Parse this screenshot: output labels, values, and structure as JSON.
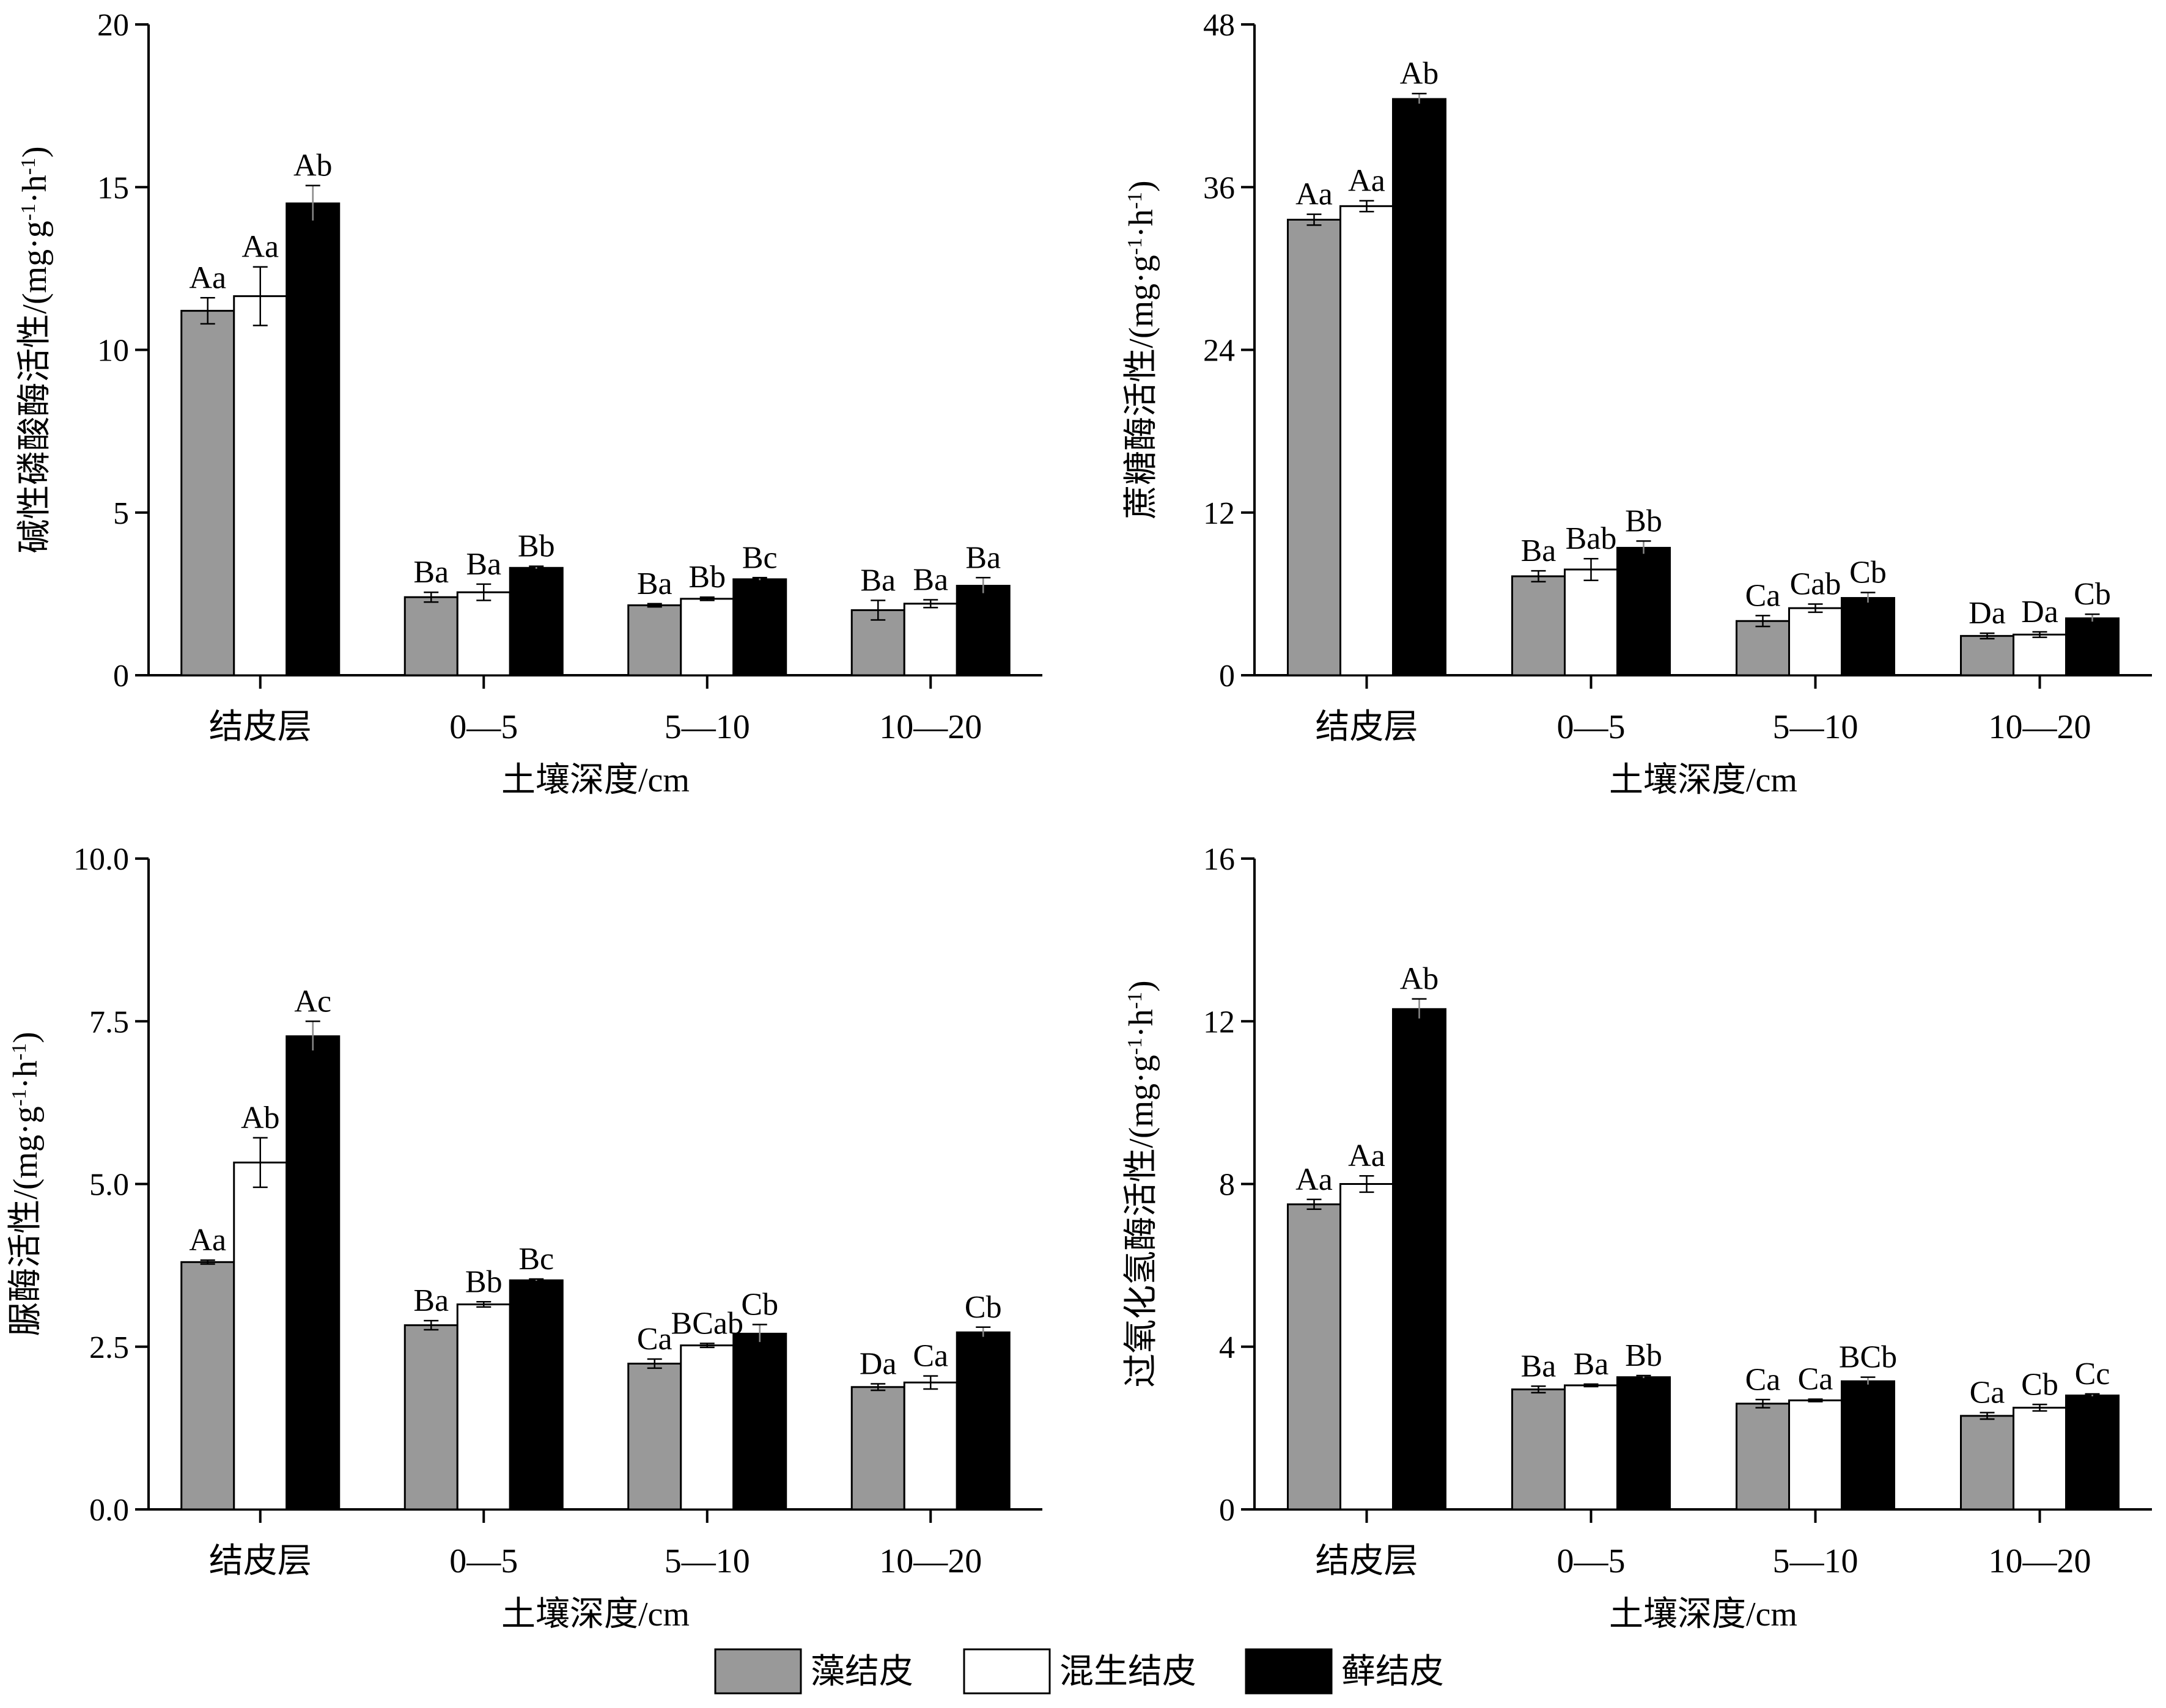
{
  "colors": {
    "algae": "#999999",
    "mixed": "#ffffff",
    "moss": "#000000",
    "stroke": "#000000"
  },
  "legend": [
    {
      "name": "藻结皮",
      "color": "#999999"
    },
    {
      "name": "混生结皮",
      "color": "#ffffff"
    },
    {
      "name": "藓结皮",
      "color": "#000000"
    }
  ],
  "chart_data": [
    {
      "type": "bar",
      "panel": "top-left",
      "categories": [
        "结皮层",
        "0—5",
        "5—10",
        "10—20"
      ],
      "xlabel": "土壤深度/cm",
      "ylabel_main": "碱性磷酸酶活性/(mg·g",
      "ylabel_mid": "·h",
      "ylabel_sup1": "-1",
      "ylabel_sup2": "-1",
      "ylabel_close": ")",
      "ylim": [
        0,
        20
      ],
      "yticks": [
        "0",
        "5",
        "10",
        "15",
        "20"
      ],
      "series": [
        {
          "name": "藻结皮",
          "values": [
            11.2,
            2.4,
            2.15,
            2.0
          ],
          "errors": [
            0.4,
            0.15,
            0.05,
            0.3
          ],
          "labels": [
            "Aa",
            "Ba",
            "Ba",
            "Ba"
          ]
        },
        {
          "name": "混生结皮",
          "values": [
            11.65,
            2.55,
            2.35,
            2.2
          ],
          "errors": [
            0.9,
            0.25,
            0.05,
            0.12
          ],
          "labels": [
            "Aa",
            "Ba",
            "Bb",
            "Ba"
          ]
        },
        {
          "name": "藓结皮",
          "values": [
            14.5,
            3.3,
            2.95,
            2.75
          ],
          "errors": [
            0.55,
            0.05,
            0.05,
            0.25
          ],
          "labels": [
            "Ab",
            "Bb",
            "Bc",
            "Ba"
          ]
        }
      ]
    },
    {
      "type": "bar",
      "panel": "top-right",
      "categories": [
        "结皮层",
        "0—5",
        "5—10",
        "10—20"
      ],
      "xlabel": "土壤深度/cm",
      "ylabel_main": "蔗糖酶活性/(mg·g",
      "ylabel_mid": "·h",
      "ylabel_sup1": "-1",
      "ylabel_sup2": "-1",
      "ylabel_close": ")",
      "ylim": [
        0,
        48
      ],
      "yticks": [
        "0",
        "12",
        "24",
        "36",
        "48"
      ],
      "series": [
        {
          "name": "藻结皮",
          "values": [
            33.6,
            7.3,
            4.0,
            2.9
          ],
          "errors": [
            0.4,
            0.4,
            0.4,
            0.2
          ],
          "labels": [
            "Aa",
            "Ba",
            "Ca",
            "Da"
          ]
        },
        {
          "name": "混生结皮",
          "values": [
            34.6,
            7.8,
            4.95,
            3.0
          ],
          "errors": [
            0.4,
            0.8,
            0.3,
            0.2
          ],
          "labels": [
            "Aa",
            "Bab",
            "Cab",
            "Da"
          ]
        },
        {
          "name": "藓结皮",
          "values": [
            42.5,
            9.4,
            5.7,
            4.2
          ],
          "errors": [
            0.4,
            0.5,
            0.4,
            0.3
          ],
          "labels": [
            "Ab",
            "Bb",
            "Cb",
            "Cb"
          ]
        }
      ]
    },
    {
      "type": "bar",
      "panel": "bottom-left",
      "categories": [
        "结皮层",
        "0—5",
        "5—10",
        "10—20"
      ],
      "xlabel": "土壤深度/cm",
      "ylabel_main": "脲酶活性/(mg·g",
      "ylabel_mid": "·h",
      "ylabel_sup1": "-1",
      "ylabel_sup2": "-1",
      "ylabel_close": ")",
      "ylim": [
        0,
        10
      ],
      "yticks": [
        "0.0",
        "2.5",
        "5.0",
        "7.5",
        "10.0"
      ],
      "series": [
        {
          "name": "藻结皮",
          "values": [
            3.8,
            2.83,
            2.24,
            1.88
          ],
          "errors": [
            0.03,
            0.07,
            0.07,
            0.05
          ],
          "labels": [
            "Aa",
            "Ba",
            "Ca",
            "Da"
          ]
        },
        {
          "name": "混生结皮",
          "values": [
            5.33,
            3.15,
            2.52,
            1.95
          ],
          "errors": [
            0.38,
            0.04,
            0.03,
            0.1
          ],
          "labels": [
            "Ab",
            "Bb",
            "BCab",
            "Ca"
          ]
        },
        {
          "name": "藓结皮",
          "values": [
            7.27,
            3.52,
            2.7,
            2.72
          ],
          "errors": [
            0.23,
            0.02,
            0.14,
            0.08
          ],
          "labels": [
            "Ac",
            "Bc",
            "Cb",
            "Cb"
          ]
        }
      ]
    },
    {
      "type": "bar",
      "panel": "bottom-right",
      "categories": [
        "结皮层",
        "0—5",
        "5—10",
        "10—20"
      ],
      "xlabel": "土壤深度/cm",
      "ylabel_main": "过氧化氢酶活性/(mg·g",
      "ylabel_mid": "·h",
      "ylabel_sup1": "-1",
      "ylabel_sup2": "-1",
      "ylabel_close": ")",
      "ylim": [
        0,
        16
      ],
      "yticks": [
        "0",
        "4",
        "8",
        "12",
        "16"
      ],
      "series": [
        {
          "name": "藻结皮",
          "values": [
            7.5,
            2.95,
            2.6,
            2.3
          ],
          "errors": [
            0.12,
            0.08,
            0.1,
            0.08
          ],
          "labels": [
            "Aa",
            "Ba",
            "Ca",
            "Ca"
          ]
        },
        {
          "name": "混生结皮",
          "values": [
            8.0,
            3.05,
            2.68,
            2.5
          ],
          "errors": [
            0.2,
            0.03,
            0.03,
            0.08
          ],
          "labels": [
            "Aa",
            "Ba",
            "Ca",
            "Cb"
          ]
        },
        {
          "name": "藓结皮",
          "values": [
            12.3,
            3.25,
            3.15,
            2.8
          ],
          "errors": [
            0.25,
            0.04,
            0.1,
            0.04
          ],
          "labels": [
            "Ab",
            "Bb",
            "BCb",
            "Cc"
          ]
        }
      ]
    }
  ]
}
